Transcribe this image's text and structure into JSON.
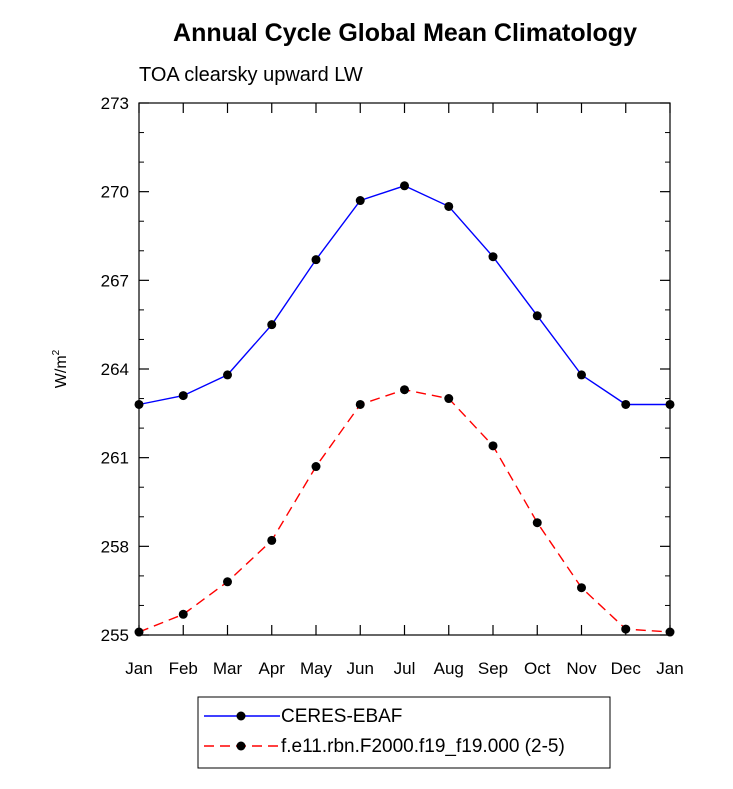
{
  "chart_data": {
    "type": "line",
    "title": "Annual Cycle Global Mean Climatology",
    "subtitle": "TOA clearsky upward LW",
    "ylabel": "W/m",
    "ylabel_sup": "2",
    "xlabel": "",
    "categories": [
      "Jan",
      "Feb",
      "Mar",
      "Apr",
      "May",
      "Jun",
      "Jul",
      "Aug",
      "Sep",
      "Oct",
      "Nov",
      "Dec",
      "Jan"
    ],
    "ylim": [
      255,
      273
    ],
    "yticks": [
      "255",
      "258",
      "261",
      "264",
      "267",
      "270",
      "273"
    ],
    "series": [
      {
        "name": "CERES-EBAF",
        "color": "#0000ff",
        "dash": "solid",
        "marker": "filled-circle",
        "values": [
          262.8,
          263.1,
          263.8,
          265.5,
          267.7,
          269.7,
          270.2,
          269.5,
          267.8,
          265.8,
          263.8,
          262.8,
          262.8
        ]
      },
      {
        "name": "f.e11.rbn.F2000.f19_f19.000 (2-5)",
        "color": "#ff0000",
        "dash": "dashed",
        "marker": "filled-circle",
        "values": [
          255.1,
          255.7,
          256.8,
          258.2,
          260.7,
          262.8,
          263.3,
          263.0,
          261.4,
          258.8,
          256.6,
          255.2,
          255.1
        ]
      }
    ],
    "grid": false,
    "legend_position": "bottom-center"
  }
}
